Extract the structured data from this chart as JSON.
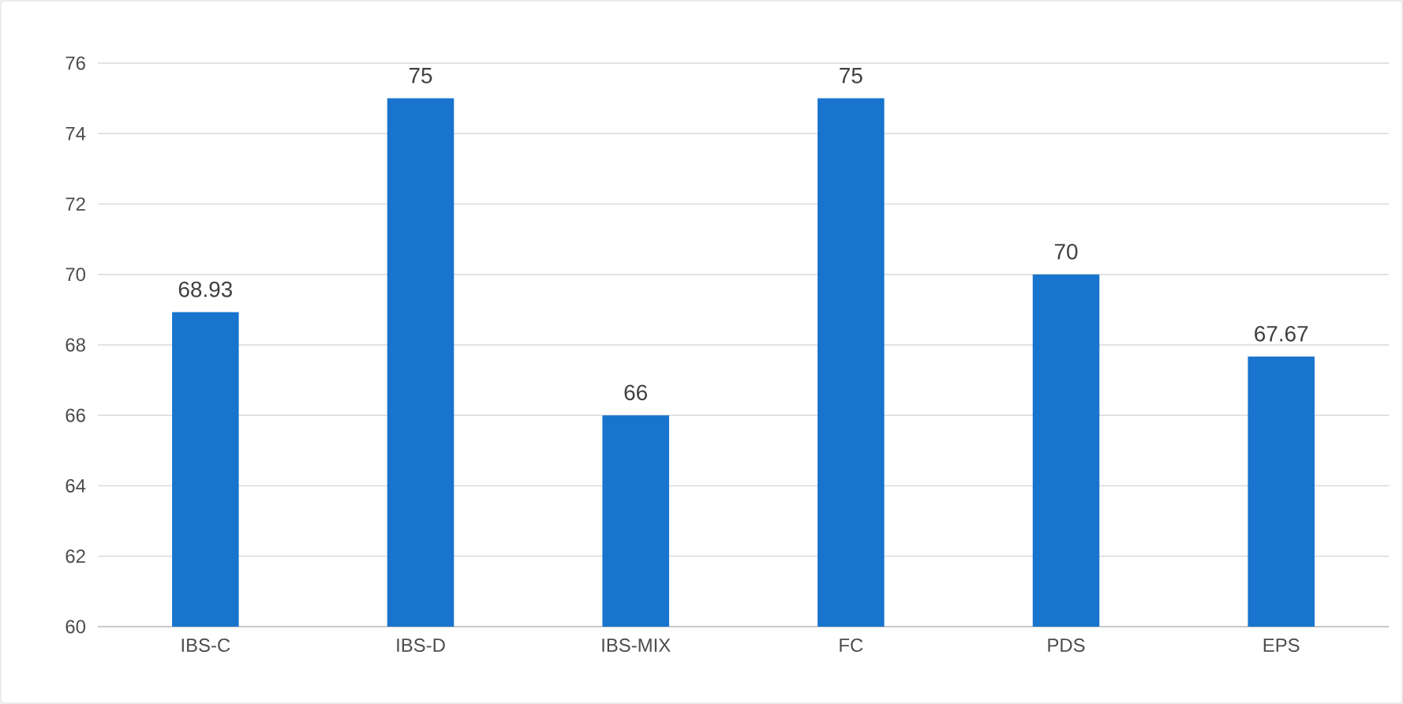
{
  "chart_data": {
    "type": "bar",
    "categories": [
      "IBS-C",
      "IBS-D",
      "IBS-MIX",
      "FC",
      "PDS",
      "EPS"
    ],
    "values": [
      68.93,
      75,
      66,
      75,
      70,
      67.67
    ],
    "color": "#1874cd",
    "ylim": [
      60,
      76
    ],
    "yticks": [
      60,
      62,
      64,
      66,
      68,
      70,
      72,
      74,
      76
    ],
    "grid": "y",
    "data_labels": true
  }
}
